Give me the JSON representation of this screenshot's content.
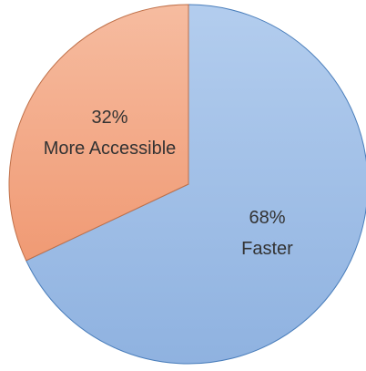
{
  "chart_data": {
    "type": "pie",
    "categories": [
      "Faster",
      "More Accessible"
    ],
    "values": [
      68,
      32
    ],
    "labels": [
      {
        "percent": "68%",
        "category": "Faster"
      },
      {
        "percent": "32%",
        "category": "More Accessible"
      }
    ],
    "colors": [
      "#9dbde6",
      "#f2a582"
    ],
    "border_colors": [
      "#4a7ebb",
      "#c0714a"
    ],
    "start": "top, clockwise",
    "legend": "none"
  }
}
